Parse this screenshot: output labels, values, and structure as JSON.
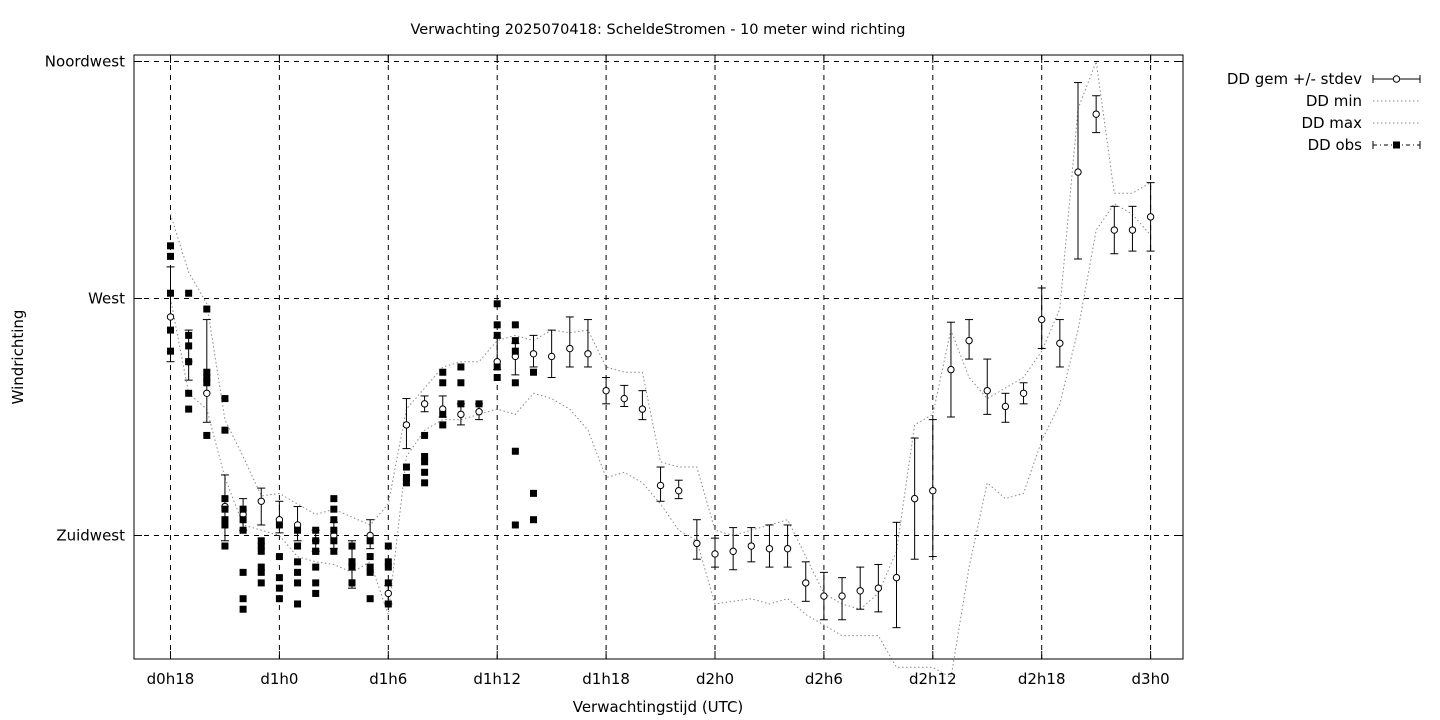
{
  "chart_data": {
    "type": "line",
    "title": "Verwachting 2025070418: ScheldeStromen - 10 meter wind richting",
    "xlabel": "Verwachtingstijd (UTC)",
    "ylabel": "Windrichting",
    "x_unit": "hours since d0h18",
    "xlim": [
      -2,
      56
    ],
    "ylim": [
      200,
      318
    ],
    "x_ticks": [
      {
        "x": 0,
        "label": "d0h18"
      },
      {
        "x": 6,
        "label": "d1h0"
      },
      {
        "x": 12,
        "label": "d1h6"
      },
      {
        "x": 18,
        "label": "d1h12"
      },
      {
        "x": 24,
        "label": "d1h18"
      },
      {
        "x": 30,
        "label": "d2h0"
      },
      {
        "x": 36,
        "label": "d2h6"
      },
      {
        "x": 42,
        "label": "d2h12"
      },
      {
        "x": 48,
        "label": "d2h18"
      },
      {
        "x": 54,
        "label": "d3h0"
      }
    ],
    "y_ticks": [
      {
        "y": 225,
        "label": "Zuidwest"
      },
      {
        "y": 270,
        "label": "West"
      },
      {
        "y": 315,
        "label": "Noordwest"
      }
    ],
    "grid": true,
    "legend_position": "outside-top-right",
    "series": [
      {
        "name": "DD gem +/- stdev",
        "style": "errorbars-circle",
        "x": [
          0,
          1,
          2,
          3,
          4,
          5,
          6,
          7,
          8,
          9,
          10,
          11,
          12,
          13,
          14,
          15,
          16,
          17,
          18,
          19,
          20,
          21,
          22,
          23,
          24,
          25,
          26,
          27,
          28,
          29,
          30,
          31,
          32,
          33,
          34,
          35,
          36,
          37,
          38,
          39,
          40,
          41,
          42,
          43,
          44,
          45,
          46,
          47,
          48,
          49,
          50,
          51,
          52,
          53,
          54
        ],
        "mean": [
          266.5,
          258,
          252,
          230.5,
          229,
          231.5,
          228,
          227,
          224,
          225,
          219.5,
          225,
          214,
          246,
          250,
          249,
          248,
          248.5,
          258,
          259,
          259.5,
          259,
          260.5,
          259.5,
          252.5,
          251,
          249,
          234.5,
          233.5,
          223.5,
          221.5,
          222,
          223,
          222.5,
          222.5,
          216,
          213.5,
          213.5,
          214.5,
          215,
          217,
          232,
          233.5,
          256.5,
          262,
          252.5,
          249.5,
          252,
          266,
          261.5,
          294,
          305,
          283,
          283,
          285.5
        ],
        "minus": [
          8.5,
          3.5,
          5.5,
          6.5,
          3,
          4.5,
          2.5,
          3,
          2,
          2.5,
          4.5,
          2.5,
          2,
          4.5,
          1.5,
          1.5,
          2,
          1.5,
          1.5,
          3.5,
          2.5,
          4,
          3.5,
          2.5,
          2.5,
          1.5,
          2,
          3,
          1.5,
          3,
          2.5,
          3.5,
          3,
          3.5,
          3.5,
          3.5,
          4.5,
          4.5,
          3.5,
          4.5,
          9.5,
          11.5,
          12.5,
          9,
          3.5,
          4.5,
          3,
          2,
          5.5,
          4.5,
          16.5,
          3.5,
          4.5,
          4,
          6.5
        ],
        "plus": [
          9.5,
          6,
          14,
          6,
          3,
          2.5,
          3.5,
          3.5,
          2,
          2.5,
          4.5,
          3,
          1.5,
          5,
          1.5,
          2.5,
          2,
          1.5,
          4.5,
          2.5,
          3.5,
          5,
          6,
          6.5,
          2.5,
          2.5,
          3.5,
          3.5,
          2,
          4.5,
          3,
          4.5,
          3.5,
          4.5,
          4.5,
          4,
          4.5,
          3.5,
          4.5,
          4.5,
          10.5,
          11.5,
          13.5,
          9,
          4,
          6,
          2.5,
          2,
          6,
          4.5,
          17,
          3.5,
          4.5,
          4.5,
          6.5
        ]
      },
      {
        "name": "DD min",
        "style": "dotted",
        "x": [
          0,
          1,
          2,
          3,
          4,
          5,
          6,
          7,
          8,
          9,
          10,
          11,
          12,
          13,
          14,
          15,
          16,
          17,
          18,
          19,
          20,
          21,
          22,
          23,
          24,
          25,
          26,
          27,
          28,
          29,
          30,
          31,
          32,
          33,
          34,
          35,
          36,
          37,
          38,
          39,
          40,
          41,
          42,
          43,
          44,
          45,
          46,
          47,
          48,
          49,
          50,
          51,
          52,
          53,
          54
        ],
        "values": [
          270,
          252,
          249,
          236,
          227,
          226,
          225,
          221,
          220,
          219.5,
          218,
          220,
          210,
          240,
          245,
          247,
          247,
          248,
          249,
          248,
          252,
          251,
          249,
          245,
          236,
          237,
          235,
          231,
          226,
          224,
          212,
          212.5,
          213,
          212,
          213,
          210,
          208,
          206,
          206,
          206,
          200,
          200,
          200,
          198,
          219,
          235,
          232,
          233,
          243,
          250,
          264,
          283,
          288,
          286,
          282
        ]
      },
      {
        "name": "DD max",
        "style": "dotted",
        "x": [
          0,
          1,
          2,
          3,
          4,
          5,
          6,
          7,
          8,
          9,
          10,
          11,
          12,
          13,
          14,
          15,
          16,
          17,
          18,
          19,
          20,
          21,
          22,
          23,
          24,
          25,
          26,
          27,
          28,
          29,
          30,
          31,
          32,
          33,
          34,
          35,
          36,
          37,
          38,
          39,
          40,
          41,
          42,
          43,
          44,
          45,
          46,
          47,
          48,
          49,
          50,
          51,
          52,
          53,
          54
        ],
        "values": [
          286,
          275,
          269,
          247,
          240,
          232.5,
          233,
          231,
          229,
          230,
          228.5,
          227,
          231,
          249,
          253,
          257,
          258,
          258,
          262,
          263,
          262,
          264,
          263.5,
          264,
          257,
          256,
          256,
          239,
          238,
          238,
          226,
          225,
          226,
          227,
          228,
          221,
          214,
          212,
          211,
          214,
          222,
          246,
          248,
          264,
          255,
          251,
          253,
          255,
          260,
          268,
          306,
          315,
          290,
          290,
          292
        ]
      },
      {
        "name": "DD obs",
        "style": "points-square",
        "x": [
          0,
          0,
          0,
          0,
          0,
          1,
          1,
          1,
          1,
          1,
          1,
          2,
          2,
          2,
          2,
          2,
          3,
          3,
          3,
          3,
          3,
          3,
          3,
          4,
          4,
          4,
          4,
          4,
          4,
          5,
          5,
          5,
          5,
          5,
          5,
          6,
          6,
          6,
          6,
          6,
          7,
          7,
          7,
          7,
          7,
          7,
          8,
          8,
          8,
          8,
          8,
          8,
          8,
          9,
          9,
          9,
          9,
          9,
          9,
          10,
          10,
          10,
          10,
          10,
          10,
          11,
          11,
          11,
          11,
          11,
          12,
          12,
          12,
          12,
          12,
          13,
          13,
          13,
          13,
          14,
          14,
          14,
          14,
          14,
          15,
          15,
          15,
          15,
          16,
          16,
          16,
          17,
          18,
          18,
          18,
          18,
          18,
          19,
          19,
          19,
          19,
          19,
          19,
          20,
          20,
          20
        ],
        "values": [
          280,
          278,
          271,
          264,
          260,
          271,
          263,
          261,
          258,
          252,
          249,
          268,
          256,
          255,
          254,
          244,
          251,
          245,
          232,
          230,
          228,
          227,
          223,
          218,
          213,
          211,
          230,
          228,
          226,
          224,
          216,
          219,
          218,
          223,
          222,
          221,
          217,
          215,
          213,
          227,
          226,
          223,
          220,
          218,
          216,
          212,
          226,
          222,
          216,
          219,
          214,
          224,
          222,
          226,
          224,
          222,
          228,
          230,
          232,
          220,
          216,
          219,
          223,
          220,
          216,
          218,
          221,
          219,
          224,
          213,
          216,
          212,
          220,
          219,
          223,
          236,
          235,
          236,
          238,
          240,
          244,
          237,
          235,
          239,
          254,
          256,
          248,
          246,
          250,
          254,
          257,
          250,
          269,
          265,
          263,
          257,
          255,
          254,
          241,
          227,
          262,
          265,
          260,
          256,
          233,
          228
        ]
      }
    ]
  }
}
